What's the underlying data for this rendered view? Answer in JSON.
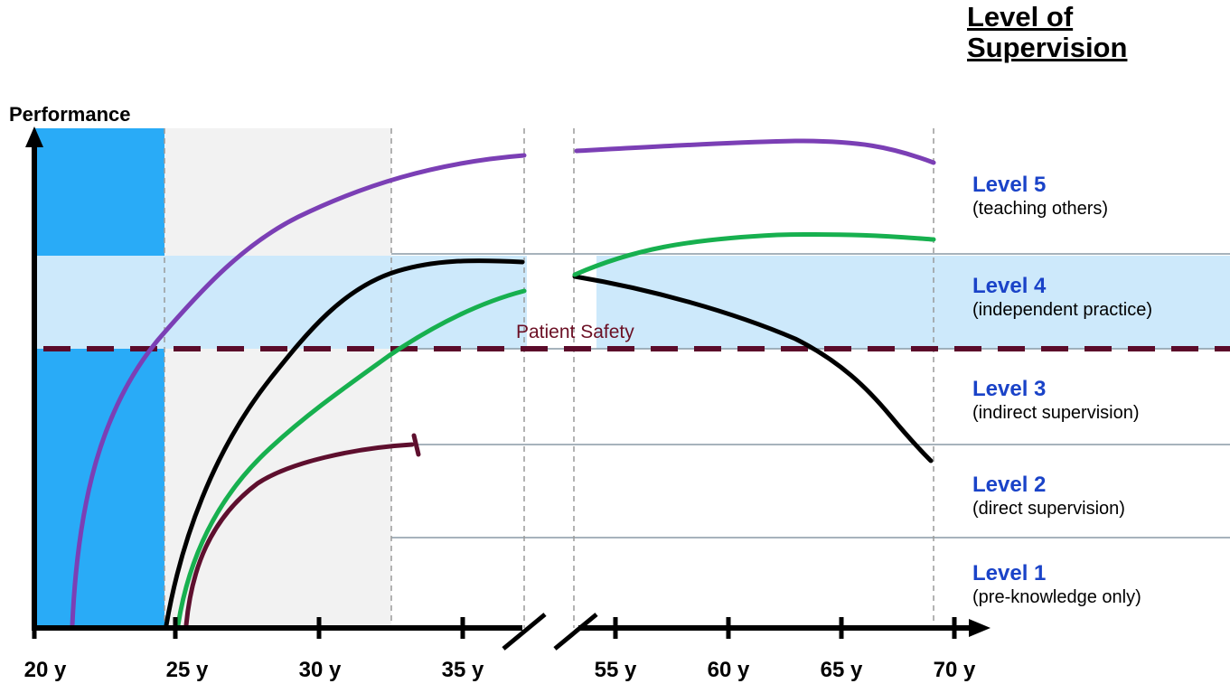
{
  "header": {
    "line1": "Level of",
    "line2": "Supervision"
  },
  "y_axis": {
    "label": "Performance"
  },
  "x_axis": {
    "ticks": [
      "20 y",
      "25 y",
      "30 y",
      "35 y",
      "55 y",
      "60 y",
      "65 y",
      "70 y"
    ]
  },
  "threshold": {
    "label": "Patient Safety",
    "color": "#5b0b2a"
  },
  "levels": [
    {
      "name": "Level 5",
      "description": "(teaching others)"
    },
    {
      "name": "Level 4",
      "description": "(independent practice)"
    },
    {
      "name": "Level 3",
      "description": "(indirect supervision)"
    },
    {
      "name": "Level 2",
      "description": "(direct supervision)"
    },
    {
      "name": "Level 1",
      "description": "(pre-knowledge only)"
    }
  ],
  "colors": {
    "dark_blue_band": "#29abf7",
    "light_blue_band": "#cde9fb",
    "grey_band": "#f2f2f2",
    "curve_purple": "#7b3fb5",
    "curve_black": "#000000",
    "curve_green": "#17b04f",
    "curve_maroon": "#5e0f2e",
    "level_text": "#1a43c8"
  }
}
